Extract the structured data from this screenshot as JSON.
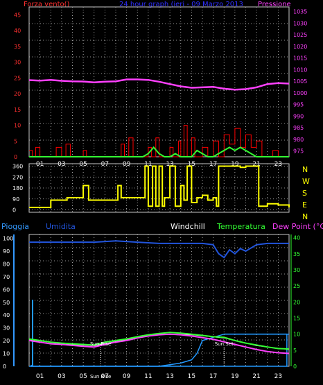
{
  "chart_data": [
    {
      "type": "line",
      "panel": "wind-pressure",
      "title": "24 hour graph (ieri - 09 Marzo 2013",
      "left_label": "Forza vento()",
      "right_label": "Pressione",
      "x_ticks": [
        "01",
        "03",
        "05",
        "07",
        "09",
        "11",
        "13",
        "15",
        "17",
        "19",
        "21",
        "23"
      ],
      "left_ticks": [
        "0",
        "5",
        "10",
        "15",
        "20",
        "25",
        "30",
        "35",
        "40",
        "45"
      ],
      "right_ticks": [
        "975",
        "980",
        "985",
        "990",
        "995",
        "1000",
        "1005",
        "1010",
        "1015",
        "1020",
        "1025",
        "1030",
        "1035"
      ],
      "left_ylim": [
        0,
        47.5
      ],
      "right_ylim": [
        972.5,
        1037
      ],
      "xlim": [
        0,
        24
      ],
      "grid": true,
      "pressure": [
        [
          0,
          1005.5
        ],
        [
          1,
          1005.3
        ],
        [
          2,
          1005.6
        ],
        [
          3,
          1005.2
        ],
        [
          4,
          1005
        ],
        [
          5,
          1004.9
        ],
        [
          6,
          1004.5
        ],
        [
          7,
          1004.8
        ],
        [
          8,
          1005
        ],
        [
          9,
          1005.8
        ],
        [
          10,
          1005.8
        ],
        [
          11,
          1005.6
        ],
        [
          12,
          1004.8
        ],
        [
          13,
          1003.8
        ],
        [
          14,
          1002.8
        ],
        [
          15,
          1002.2
        ],
        [
          16,
          1002.4
        ],
        [
          17,
          1002.6
        ],
        [
          18,
          1001.8
        ],
        [
          19,
          1001.4
        ],
        [
          20,
          1001.6
        ],
        [
          21,
          1002.4
        ],
        [
          22,
          1003.8
        ],
        [
          23,
          1004.2
        ],
        [
          24,
          1004
        ]
      ],
      "wind_gust": [
        [
          0,
          2
        ],
        [
          0.3,
          0
        ],
        [
          0.6,
          3
        ],
        [
          1,
          0
        ],
        [
          2,
          0
        ],
        [
          2.5,
          3
        ],
        [
          3,
          0
        ],
        [
          3.4,
          4
        ],
        [
          3.8,
          0
        ],
        [
          4.5,
          0
        ],
        [
          5,
          2
        ],
        [
          5.3,
          0
        ],
        [
          8,
          0
        ],
        [
          8.5,
          4
        ],
        [
          8.8,
          0
        ],
        [
          9.2,
          6
        ],
        [
          9.6,
          0
        ],
        [
          10,
          0
        ],
        [
          11,
          3
        ],
        [
          11.3,
          0
        ],
        [
          11.7,
          6
        ],
        [
          12,
          0
        ],
        [
          13,
          3
        ],
        [
          13.3,
          0
        ],
        [
          13.8,
          5
        ],
        [
          14,
          0
        ],
        [
          14.3,
          10
        ],
        [
          14.6,
          0
        ],
        [
          15,
          6
        ],
        [
          15.3,
          0
        ],
        [
          16,
          3
        ],
        [
          16.5,
          0
        ],
        [
          17,
          5
        ],
        [
          17.5,
          0
        ],
        [
          18,
          7
        ],
        [
          18.5,
          4
        ],
        [
          19,
          9
        ],
        [
          19.5,
          3
        ],
        [
          20,
          7
        ],
        [
          20.5,
          3
        ],
        [
          21,
          5
        ],
        [
          21.5,
          0
        ],
        [
          22.5,
          2
        ],
        [
          23,
          0
        ],
        [
          24,
          0
        ]
      ],
      "wind_avg": [
        [
          0,
          0
        ],
        [
          10.5,
          0
        ],
        [
          11,
          1
        ],
        [
          11.5,
          3
        ],
        [
          12,
          1
        ],
        [
          12.5,
          0
        ],
        [
          13,
          0
        ],
        [
          13.5,
          1
        ],
        [
          14,
          0
        ],
        [
          15,
          0
        ],
        [
          15.5,
          2
        ],
        [
          16,
          1
        ],
        [
          16.5,
          0
        ],
        [
          17,
          0
        ],
        [
          18,
          2
        ],
        [
          18.5,
          3
        ],
        [
          19,
          2
        ],
        [
          19.5,
          3
        ],
        [
          20,
          2
        ],
        [
          20.5,
          1
        ],
        [
          21,
          0
        ],
        [
          24,
          0
        ]
      ]
    },
    {
      "type": "line",
      "panel": "wind-direction",
      "left_ticks": [
        "0",
        "90",
        "180",
        "270",
        "360"
      ],
      "right_ticks": [
        "N",
        "W",
        "S",
        "E",
        "N"
      ],
      "ylim": [
        -20,
        380
      ],
      "xlim": [
        0,
        24
      ],
      "grid": true,
      "direction": [
        [
          0,
          20
        ],
        [
          1.5,
          20
        ],
        [
          2,
          80
        ],
        [
          3,
          80
        ],
        [
          3.5,
          100
        ],
        [
          4.5,
          100
        ],
        [
          5,
          200
        ],
        [
          5.5,
          80
        ],
        [
          8,
          80
        ],
        [
          8.2,
          200
        ],
        [
          8.5,
          100
        ],
        [
          10,
          100
        ],
        [
          10.5,
          100
        ],
        [
          10.7,
          360
        ],
        [
          11,
          30
        ],
        [
          11.4,
          360
        ],
        [
          11.7,
          30
        ],
        [
          12,
          360
        ],
        [
          12.3,
          30
        ],
        [
          12.5,
          100
        ],
        [
          13,
          360
        ],
        [
          13.3,
          360
        ],
        [
          13.5,
          30
        ],
        [
          14,
          200
        ],
        [
          14.3,
          80
        ],
        [
          14.6,
          360
        ],
        [
          15,
          60
        ],
        [
          15.5,
          100
        ],
        [
          16,
          120
        ],
        [
          16.5,
          80
        ],
        [
          17,
          100
        ],
        [
          17.3,
          30
        ],
        [
          17.5,
          360
        ],
        [
          18,
          360
        ],
        [
          19,
          360
        ],
        [
          19.5,
          350
        ],
        [
          20,
          360
        ],
        [
          21,
          360
        ],
        [
          21.2,
          30
        ],
        [
          22,
          50
        ],
        [
          23,
          40
        ],
        [
          24,
          20
        ]
      ]
    },
    {
      "type": "line",
      "panel": "temp-humidity",
      "left_label": "Pioggia",
      "labels": {
        "humidity": "Umidita",
        "windchill": "Windchill",
        "temperature": "Temperatura",
        "dewpoint": "Dew Point (°C)"
      },
      "x_ticks": [
        "01",
        "03",
        "05",
        "07",
        "09",
        "11",
        "13",
        "15",
        "17",
        "19",
        "21",
        "23"
      ],
      "left_ticks": [
        "0",
        "10",
        "20",
        "30",
        "40",
        "50",
        "60",
        "70",
        "80",
        "90",
        "100"
      ],
      "right_ticks": [
        "0",
        "5",
        "10",
        "15",
        "20",
        "25",
        "30",
        "35",
        "40"
      ],
      "left_ylim": [
        0,
        103
      ],
      "right_ylim": [
        0,
        41
      ],
      "xlim": [
        0,
        24
      ],
      "grid": true,
      "annotations": [
        "Sun Rise",
        "Sun Set",
        "Sun Rise"
      ],
      "humidity": [
        [
          0,
          97
        ],
        [
          2,
          97
        ],
        [
          4,
          97
        ],
        [
          6,
          97
        ],
        [
          8,
          98
        ],
        [
          10,
          97
        ],
        [
          12,
          96
        ],
        [
          14,
          96
        ],
        [
          16,
          96
        ],
        [
          17,
          95
        ],
        [
          17.5,
          88
        ],
        [
          18,
          85
        ],
        [
          18.5,
          91
        ],
        [
          19,
          88
        ],
        [
          19.5,
          92
        ],
        [
          20,
          90
        ],
        [
          21,
          95
        ],
        [
          22,
          96
        ],
        [
          24,
          96
        ]
      ],
      "temperature": [
        [
          0,
          8.5
        ],
        [
          1,
          8
        ],
        [
          2,
          7.5
        ],
        [
          3,
          7.2
        ],
        [
          4,
          7
        ],
        [
          5,
          6.8
        ],
        [
          6,
          6.6
        ],
        [
          7,
          7.5
        ],
        [
          8,
          8
        ],
        [
          9,
          8.5
        ],
        [
          10,
          9.2
        ],
        [
          11,
          9.8
        ],
        [
          12,
          10.2
        ],
        [
          13,
          10.5
        ],
        [
          14,
          10.3
        ],
        [
          15,
          10
        ],
        [
          16,
          9.6
        ],
        [
          17,
          9.2
        ],
        [
          18,
          9
        ],
        [
          19,
          8
        ],
        [
          20,
          7.2
        ],
        [
          21,
          6.6
        ],
        [
          22,
          6
        ],
        [
          23,
          5.5
        ],
        [
          24,
          5.4
        ]
      ],
      "dewpoint": [
        [
          0,
          8
        ],
        [
          1,
          7.5
        ],
        [
          2,
          7
        ],
        [
          3,
          6.8
        ],
        [
          4,
          6.5
        ],
        [
          5,
          6.2
        ],
        [
          6,
          6
        ],
        [
          7,
          6.8
        ],
        [
          8,
          7.5
        ],
        [
          9,
          8
        ],
        [
          10,
          8.8
        ],
        [
          11,
          9.4
        ],
        [
          12,
          9.8
        ],
        [
          13,
          10
        ],
        [
          14,
          9.8
        ],
        [
          15,
          9.4
        ],
        [
          16,
          8.9
        ],
        [
          17,
          8.4
        ],
        [
          18,
          7.6
        ],
        [
          19,
          6.8
        ],
        [
          20,
          6
        ],
        [
          21,
          5.2
        ],
        [
          22,
          4.6
        ],
        [
          23,
          4.2
        ],
        [
          24,
          4
        ]
      ],
      "windchill": [
        [
          0,
          8.3
        ],
        [
          3,
          7
        ],
        [
          6,
          6.4
        ],
        [
          9,
          8.3
        ],
        [
          12,
          10
        ],
        [
          15,
          9.8
        ],
        [
          18,
          8.8
        ],
        [
          21,
          6.4
        ],
        [
          24,
          5.2
        ]
      ],
      "rain": [
        [
          0,
          0
        ],
        [
          12,
          0
        ],
        [
          13,
          0.5
        ],
        [
          14,
          1
        ],
        [
          15,
          2
        ],
        [
          15.5,
          4
        ],
        [
          16,
          8
        ],
        [
          17,
          9
        ],
        [
          18,
          10
        ],
        [
          19,
          10
        ],
        [
          24,
          10
        ]
      ],
      "rain_axis_max": 10,
      "rain_left_bar": 52
    }
  ],
  "colors": {
    "grid": "#c8c8c8",
    "wind_axis": "#ff3030",
    "pressure": "#ff40ff",
    "title": "#3030ff",
    "wind_gust": "#ff0000",
    "wind_avg": "#33ff33",
    "direction": "#ffff00",
    "compass": "#ffff00",
    "rain_axis": "#3399ff",
    "humidity": "#2255dd",
    "windchill": "#ffffff",
    "temperature": "#33ff33",
    "dewpoint": "#ff40ff",
    "rain": "#2299ff"
  }
}
